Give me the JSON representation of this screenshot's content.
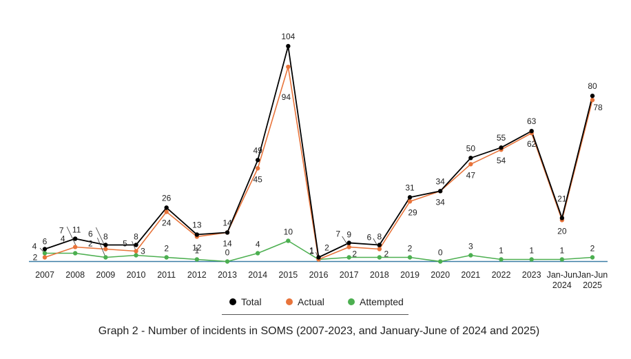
{
  "chart_data": {
    "type": "line",
    "title": "",
    "caption": "Graph 2 - Number of incidents in SOMS (2007-2023, and January-June of 2024 and 2025)",
    "xlabel": "",
    "ylabel": "",
    "ylim": [
      0,
      110
    ],
    "grid": false,
    "legend_position": "bottom",
    "categories": [
      "2007",
      "2008",
      "2009",
      "2010",
      "2011",
      "2012",
      "2013",
      "2014",
      "2015",
      "2016",
      "2017",
      "2018",
      "2019",
      "2020",
      "2021",
      "2022",
      "2023",
      "Jan-Jun 2024",
      "Jan-Jun 2025"
    ],
    "series": [
      {
        "name": "Total",
        "color": "#000000",
        "values": [
          6,
          11,
          8,
          8,
          26,
          13,
          14,
          49,
          104,
          2,
          9,
          8,
          31,
          34,
          50,
          55,
          63,
          21,
          80
        ]
      },
      {
        "name": "Actual",
        "color": "#e8743b",
        "values": [
          2,
          7,
          6,
          5,
          24,
          12,
          14,
          45,
          94,
          1,
          7,
          6,
          29,
          34,
          47,
          54,
          62,
          20,
          78
        ]
      },
      {
        "name": "Attempted",
        "color": "#4caf50",
        "values": [
          4,
          4,
          2,
          3,
          2,
          1,
          0,
          4,
          10,
          1,
          2,
          2,
          2,
          0,
          3,
          1,
          1,
          1,
          2
        ]
      }
    ]
  }
}
